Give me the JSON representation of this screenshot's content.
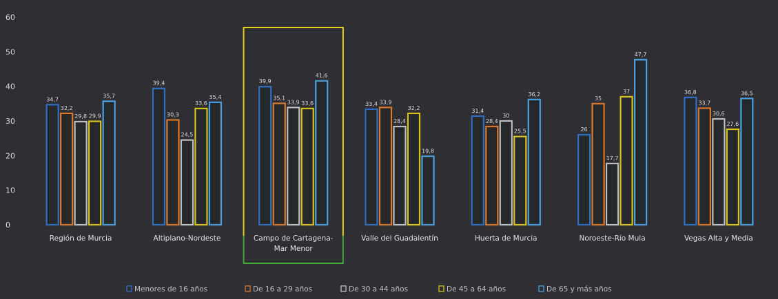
{
  "chart_data": {
    "type": "bar",
    "categories": [
      [
        "Región de Murcia"
      ],
      [
        "Altiplano-Nordeste"
      ],
      [
        "Campo de Cartagena-",
        "Mar Menor"
      ],
      [
        "Valle del Guadalentín"
      ],
      [
        "Huerta de Murcia"
      ],
      [
        "Noroeste-Río Mula"
      ],
      [
        "Vegas Alta y Media"
      ]
    ],
    "series": [
      {
        "name": "Menores de 16 años",
        "color": "#2f6fc2",
        "values": [
          34.7,
          39.4,
          39.9,
          33.4,
          31.4,
          26.0,
          36.8
        ],
        "labels": [
          "34,7",
          "39,4",
          "39,9",
          "33,4",
          "31,4",
          "26",
          "36,8"
        ]
      },
      {
        "name": "De 16 a 29 años",
        "color": "#d8782c",
        "values": [
          32.2,
          30.3,
          35.1,
          33.9,
          28.4,
          35.0,
          33.7
        ],
        "labels": [
          "32,2",
          "30,3",
          "35,1",
          "33,9",
          "28,4",
          "35",
          "33,7"
        ]
      },
      {
        "name": "De 30 a 44 años",
        "color": "#bdbdbd",
        "values": [
          29.8,
          24.5,
          33.9,
          28.4,
          30.0,
          17.7,
          30.6
        ],
        "labels": [
          "29,8",
          "24,5",
          "33,9",
          "28,4",
          "30",
          "17,7",
          "30,6"
        ]
      },
      {
        "name": "De 45 a 64 años",
        "color": "#d6c21c",
        "values": [
          29.9,
          33.6,
          33.6,
          32.2,
          25.5,
          37.0,
          27.6
        ],
        "labels": [
          "29,9",
          "33,6",
          "33,6",
          "32,2",
          "25,5",
          "37",
          "27,6"
        ]
      },
      {
        "name": "De 65 y más años",
        "color": "#4a9fe0",
        "values": [
          35.7,
          35.4,
          41.6,
          19.8,
          36.2,
          47.7,
          36.5
        ],
        "labels": [
          "35,7",
          "35,4",
          "41,6",
          "19,8",
          "36,2",
          "47,7",
          "36,5"
        ]
      }
    ],
    "yticks": [
      "0",
      "10",
      "20",
      "30",
      "40",
      "50",
      "60"
    ],
    "ylim": [
      0,
      60
    ],
    "grid": false,
    "legend_position": "bottom",
    "highlight": {
      "category_index": 2,
      "top_color": "#e3d21f",
      "bottom_color": "#43a53b"
    }
  }
}
